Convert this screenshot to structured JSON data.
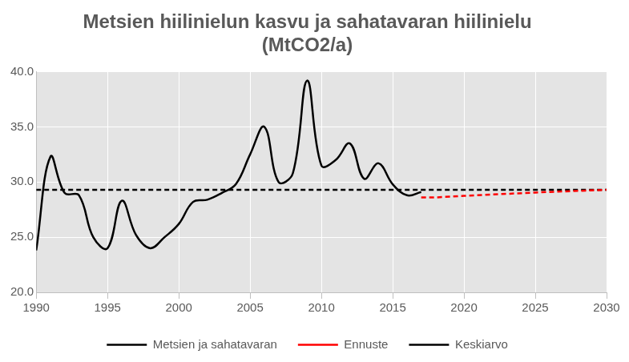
{
  "chart_data": {
    "type": "line",
    "title": [
      "Metsien hiilinielun kasvu ja sahatavaran hiilinielu",
      "(MtCO2/a)"
    ],
    "xlim": [
      1990,
      2030
    ],
    "xticks": [
      1990,
      1995,
      2000,
      2005,
      2010,
      2015,
      2020,
      2025,
      2030
    ],
    "ylim": [
      20,
      40
    ],
    "yticks": [
      {
        "value": 20,
        "label": "20.0"
      },
      {
        "value": 25,
        "label": "25.0"
      },
      {
        "value": 30,
        "label": "30.0"
      },
      {
        "value": 35,
        "label": "35.0"
      },
      {
        "value": 40,
        "label": "40.0"
      }
    ],
    "grid": true,
    "legend": "bottom",
    "series": [
      {
        "name": "Metsien ja sahatavaran",
        "color": "#000000",
        "line_style": "solid",
        "marker": "none",
        "x": [
          1990,
          1991,
          1992,
          1993,
          1994,
          1995,
          1996,
          1997,
          1998,
          1999,
          2000,
          2001,
          2002,
          2003,
          2004,
          2005,
          2006,
          2007,
          2008,
          2009,
          2010,
          2011,
          2012,
          2013,
          2014,
          2015,
          2016,
          2017
        ],
        "values": [
          23.8,
          32.3,
          29.0,
          28.8,
          25.0,
          24.0,
          28.3,
          25.2,
          24.0,
          25.0,
          26.2,
          28.2,
          28.4,
          29.0,
          29.8,
          32.5,
          35.0,
          30.0,
          30.8,
          39.2,
          31.5,
          32.0,
          33.5,
          30.3,
          31.7,
          29.8,
          28.8,
          29.1
        ]
      },
      {
        "name": "Ennuste",
        "color": "#ff0000",
        "line_style": "dashed",
        "marker": "none",
        "x": [
          2017,
          2018,
          2020,
          2025,
          2030
        ],
        "values": [
          28.6,
          28.6,
          28.75,
          29.05,
          29.3
        ]
      },
      {
        "name": "Keskiarvo",
        "color": "#000000",
        "line_style": "dashed",
        "marker": "none",
        "x": [
          1990,
          2030
        ],
        "values": [
          29.3,
          29.3
        ]
      }
    ]
  }
}
